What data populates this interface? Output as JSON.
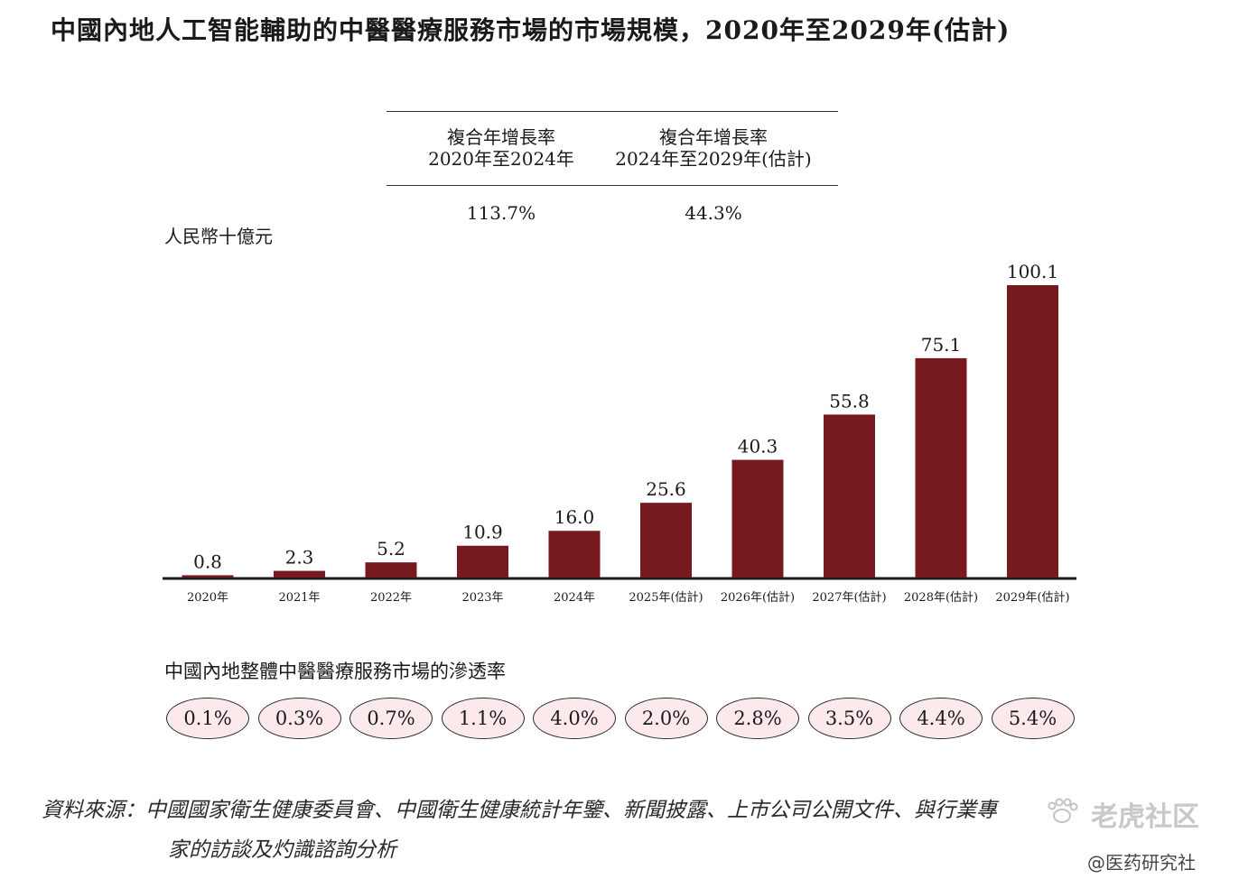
{
  "title": "中國內地人工智能輔助的中醫醫療服務市場的市場規模，2020年至2029年(估計)",
  "cagr": {
    "col1": {
      "label_line1": "複合年增長率",
      "label_line2": "2020年至2024年",
      "value": "113.7%"
    },
    "col2": {
      "label_line1": "複合年增長率",
      "label_line2": "2024年至2029年(估計)",
      "value": "44.3%"
    }
  },
  "chart_data": {
    "type": "bar",
    "title": "中國內地人工智能輔助的中醫醫療服務市場的市場規模，2020年至2029年(估計)",
    "ylabel": "人民幣十億元",
    "xlabel": "",
    "categories": [
      "2020年",
      "2021年",
      "2022年",
      "2023年",
      "2024年",
      "2025年(估計)",
      "2026年(估計)",
      "2027年(估計)",
      "2028年(估計)",
      "2029年(估計)"
    ],
    "values": [
      0.8,
      2.3,
      5.2,
      10.9,
      16.0,
      25.6,
      40.3,
      55.8,
      75.1,
      100.1
    ],
    "value_labels": [
      "0.8",
      "2.3",
      "5.2",
      "10.9",
      "16.0",
      "25.6",
      "40.3",
      "55.8",
      "75.1",
      "100.1"
    ],
    "ylim": [
      0,
      100.1
    ],
    "bar_color": "#771a20",
    "grid": false,
    "legend": "none"
  },
  "penetration": {
    "title": "中國內地整體中醫醫療服務市場的滲透率",
    "values": [
      "0.1%",
      "0.3%",
      "0.7%",
      "1.1%",
      "4.0%",
      "2.0%",
      "2.8%",
      "3.5%",
      "4.4%",
      "5.4%"
    ],
    "fill_color": "#fbe9ec"
  },
  "source": {
    "line1": "資料來源：中國國家衛生健康委員會、中國衛生健康統計年鑒、新聞披露、上市公司公開文件、與行業專",
    "line2": "家的訪談及灼識諮詢分析"
  },
  "watermark": {
    "logo_text": "老虎社区",
    "handle": "@医药研究社",
    "logo_icon": "tiger-paw-icon"
  }
}
